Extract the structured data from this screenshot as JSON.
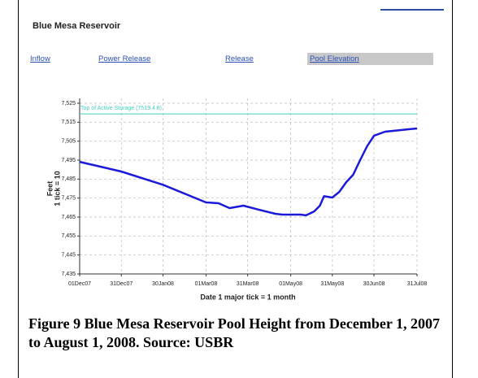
{
  "header": {
    "title": "Blue Mesa Reservoir"
  },
  "tabs": [
    "Inflow",
    "Power Release",
    "Release",
    "Pool Elevation"
  ],
  "caption": "Figure 9 Blue Mesa Reservoir Pool Height from December 1, 2007 to August 1, 2008. Source: USBR",
  "chart_data": {
    "type": "line",
    "y_label": "Feet",
    "y_label_sub": "1 tick = 10",
    "x_label": "Date  1 major tick = 1 month",
    "x": [
      "2007-12-01",
      "2007-12-31",
      "2008-01-30",
      "2008-03-01",
      "2008-03-10",
      "2008-03-18",
      "2008-03-28",
      "2008-04-08",
      "2008-04-20",
      "2008-04-25",
      "2008-05-08",
      "2008-05-12",
      "2008-05-18",
      "2008-05-22",
      "2008-05-25",
      "2008-05-31",
      "2008-06-05",
      "2008-06-10",
      "2008-06-15",
      "2008-06-20",
      "2008-06-25",
      "2008-06-30",
      "2008-07-08",
      "2008-07-20",
      "2008-07-31"
    ],
    "series": [
      {
        "name": "Pool Elevation",
        "color": "#1a1ad8",
        "values": [
          7494.1,
          7489,
          7482,
          7472.7,
          7472.3,
          7469.7,
          7471,
          7468.9,
          7466.7,
          7466.3,
          7466.3,
          7465.9,
          7468,
          7471,
          7476,
          7475.3,
          7478.3,
          7483.4,
          7487.3,
          7495,
          7502.3,
          7507.9,
          7510,
          7510.9,
          7511.7
        ]
      }
    ],
    "reference_line": {
      "label": "Top of Active Storage (7519.4 ft)",
      "value": 7519.4,
      "color": "#40d0c0"
    },
    "xlim": [
      "2007-12-01",
      "2008-07-31"
    ],
    "xticks": [
      {
        "value": "2007-12-01",
        "label": "01Dec07"
      },
      {
        "value": "2007-12-31",
        "label": "31Dec07"
      },
      {
        "value": "2008-01-30",
        "label": "30Jan08"
      },
      {
        "value": "2008-03-01",
        "label": "01Mar08"
      },
      {
        "value": "2008-03-31",
        "label": "31Mar08"
      },
      {
        "value": "2008-05-01",
        "label": "01May08"
      },
      {
        "value": "2008-05-31",
        "label": "31May08"
      },
      {
        "value": "2008-06-30",
        "label": "30Jun08"
      },
      {
        "value": "2008-07-31",
        "label": "31Jul08"
      }
    ],
    "ylim": [
      7435,
      7525
    ],
    "yticks": [
      {
        "value": 7435,
        "label": "7,435"
      },
      {
        "value": 7445,
        "label": "7,445"
      },
      {
        "value": 7455,
        "label": "7,455"
      },
      {
        "value": 7465,
        "label": "7,465"
      },
      {
        "value": 7475,
        "label": "7,475"
      },
      {
        "value": 7485,
        "label": "7,485"
      },
      {
        "value": 7495,
        "label": "7,495"
      },
      {
        "value": 7505,
        "label": "7,505"
      },
      {
        "value": 7515,
        "label": "7,515"
      },
      {
        "value": 7525,
        "label": "7,525"
      }
    ],
    "grid": true
  }
}
